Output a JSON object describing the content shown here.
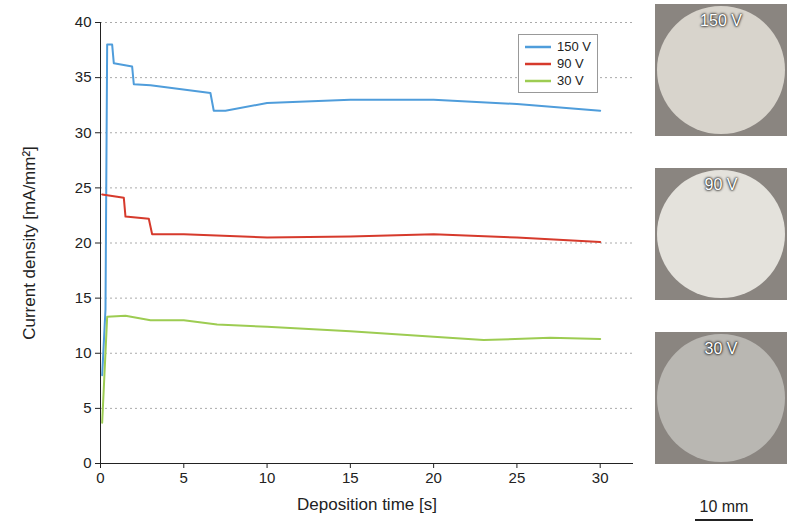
{
  "chart_data": {
    "type": "line",
    "xlabel": "Deposition time [s]",
    "ylabel": "Current density [mA/mm²]",
    "xlim": [
      0,
      32
    ],
    "xticks": [
      0,
      5,
      10,
      15,
      20,
      25,
      30
    ],
    "ylim": [
      0,
      40
    ],
    "yticks": [
      0,
      5,
      10,
      15,
      20,
      25,
      30,
      35,
      40
    ],
    "grid": true,
    "legend": "upper right",
    "series": [
      {
        "name": "150 V",
        "color": "#4f9ddb",
        "x": [
          0.1,
          0.3,
          0.4,
          0.7,
          0.8,
          1.9,
          2.0,
          3.0,
          6.6,
          6.8,
          7.5,
          10,
          15,
          20,
          25,
          30
        ],
        "values": [
          8,
          14,
          38,
          38,
          36.3,
          36,
          34.4,
          34.3,
          33.6,
          32,
          32,
          32.7,
          33,
          33,
          32.6,
          32
        ]
      },
      {
        "name": "90 V",
        "color": "#d63a2c",
        "x": [
          0.1,
          1.0,
          1.4,
          1.5,
          2.9,
          3.1,
          5,
          10,
          15,
          20,
          25,
          30
        ],
        "values": [
          24.4,
          24.2,
          24.1,
          22.4,
          22.2,
          20.8,
          20.8,
          20.5,
          20.6,
          20.8,
          20.5,
          20.1
        ]
      },
      {
        "name": "30 V",
        "color": "#9dcc52",
        "x": [
          0.1,
          0.4,
          1.5,
          3,
          5,
          7,
          10,
          15,
          20,
          23,
          27,
          30
        ],
        "values": [
          3.7,
          13.3,
          13.4,
          13,
          13,
          12.6,
          12.4,
          12,
          11.5,
          11.2,
          11.4,
          11.3
        ]
      }
    ],
    "images": [
      {
        "label": "150 V"
      },
      {
        "label": "90 V"
      },
      {
        "label": "30 V"
      }
    ],
    "scale_bar": "10 mm"
  }
}
